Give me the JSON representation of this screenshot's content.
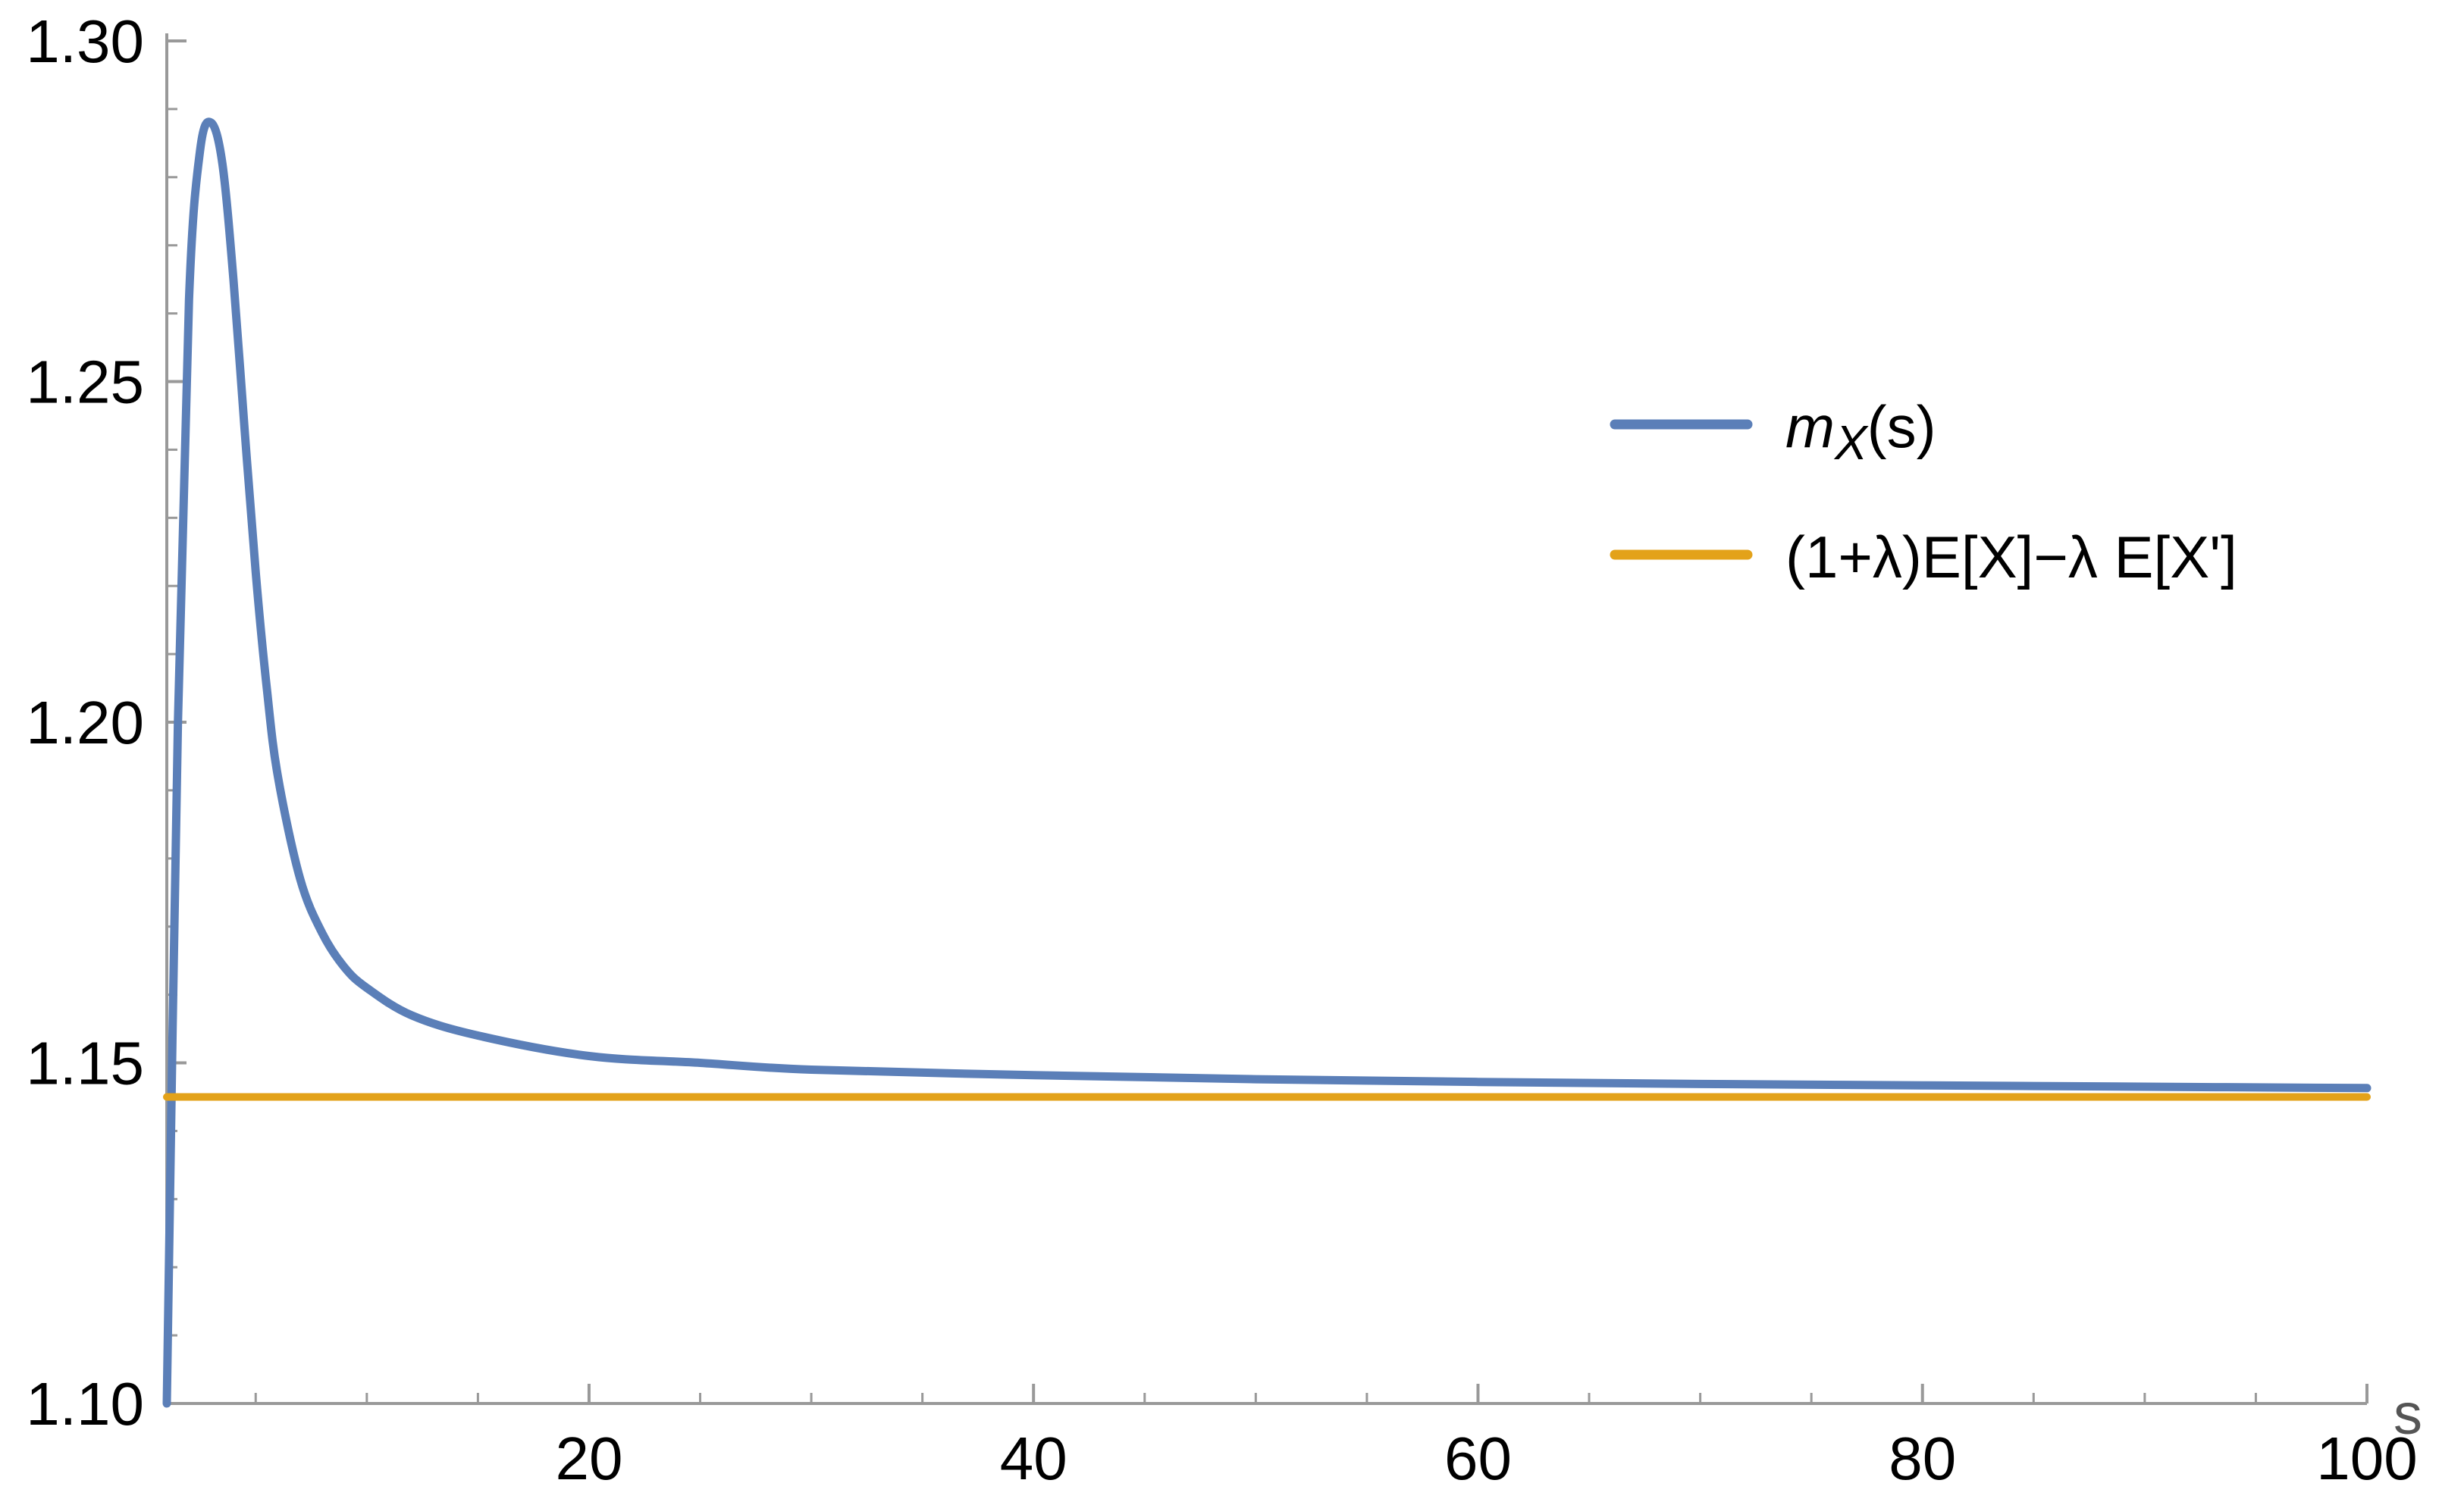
{
  "chart_data": {
    "type": "line",
    "title": "",
    "xlabel": "s",
    "ylabel": "",
    "xlim": [
      1,
      100
    ],
    "ylim": [
      1.1,
      1.3
    ],
    "x_ticks": [
      20,
      40,
      60,
      80,
      100
    ],
    "x_tick_labels": [
      "20",
      "40",
      "60",
      "80",
      "100"
    ],
    "y_ticks": [
      1.1,
      1.15,
      1.2,
      1.25,
      1.3
    ],
    "y_tick_labels": [
      "1.10",
      "1.15",
      "1.20",
      "1.25",
      "1.30"
    ],
    "grid": false,
    "legend_position": "right",
    "series": [
      {
        "name": "m_X(s)",
        "color": "#5B7FB8",
        "x": [
          1,
          1.5,
          2,
          2.5,
          3,
          3.5,
          4,
          4.5,
          5,
          5.5,
          6,
          7,
          8,
          9,
          10,
          12,
          15,
          20,
          25,
          30,
          40,
          50,
          60,
          70,
          80,
          90,
          100
        ],
        "values": [
          1.1,
          1.2,
          1.262,
          1.284,
          1.288,
          1.282,
          1.265,
          1.243,
          1.222,
          1.205,
          1.192,
          1.177,
          1.169,
          1.164,
          1.161,
          1.157,
          1.154,
          1.151,
          1.15,
          1.149,
          1.1482,
          1.1476,
          1.1472,
          1.1469,
          1.1467,
          1.1465,
          1.1463
        ]
      },
      {
        "name": "(1+λ)E[X]−λ E[X']",
        "color": "#E3A21A",
        "x": [
          1,
          100
        ],
        "values": [
          1.145,
          1.145
        ]
      }
    ]
  },
  "legend": {
    "series1_symbol": "m",
    "series1_subscript": "X",
    "series1_suffix": "(s)",
    "series2_label": "(1+λ)E[X]−λ E[X']"
  }
}
